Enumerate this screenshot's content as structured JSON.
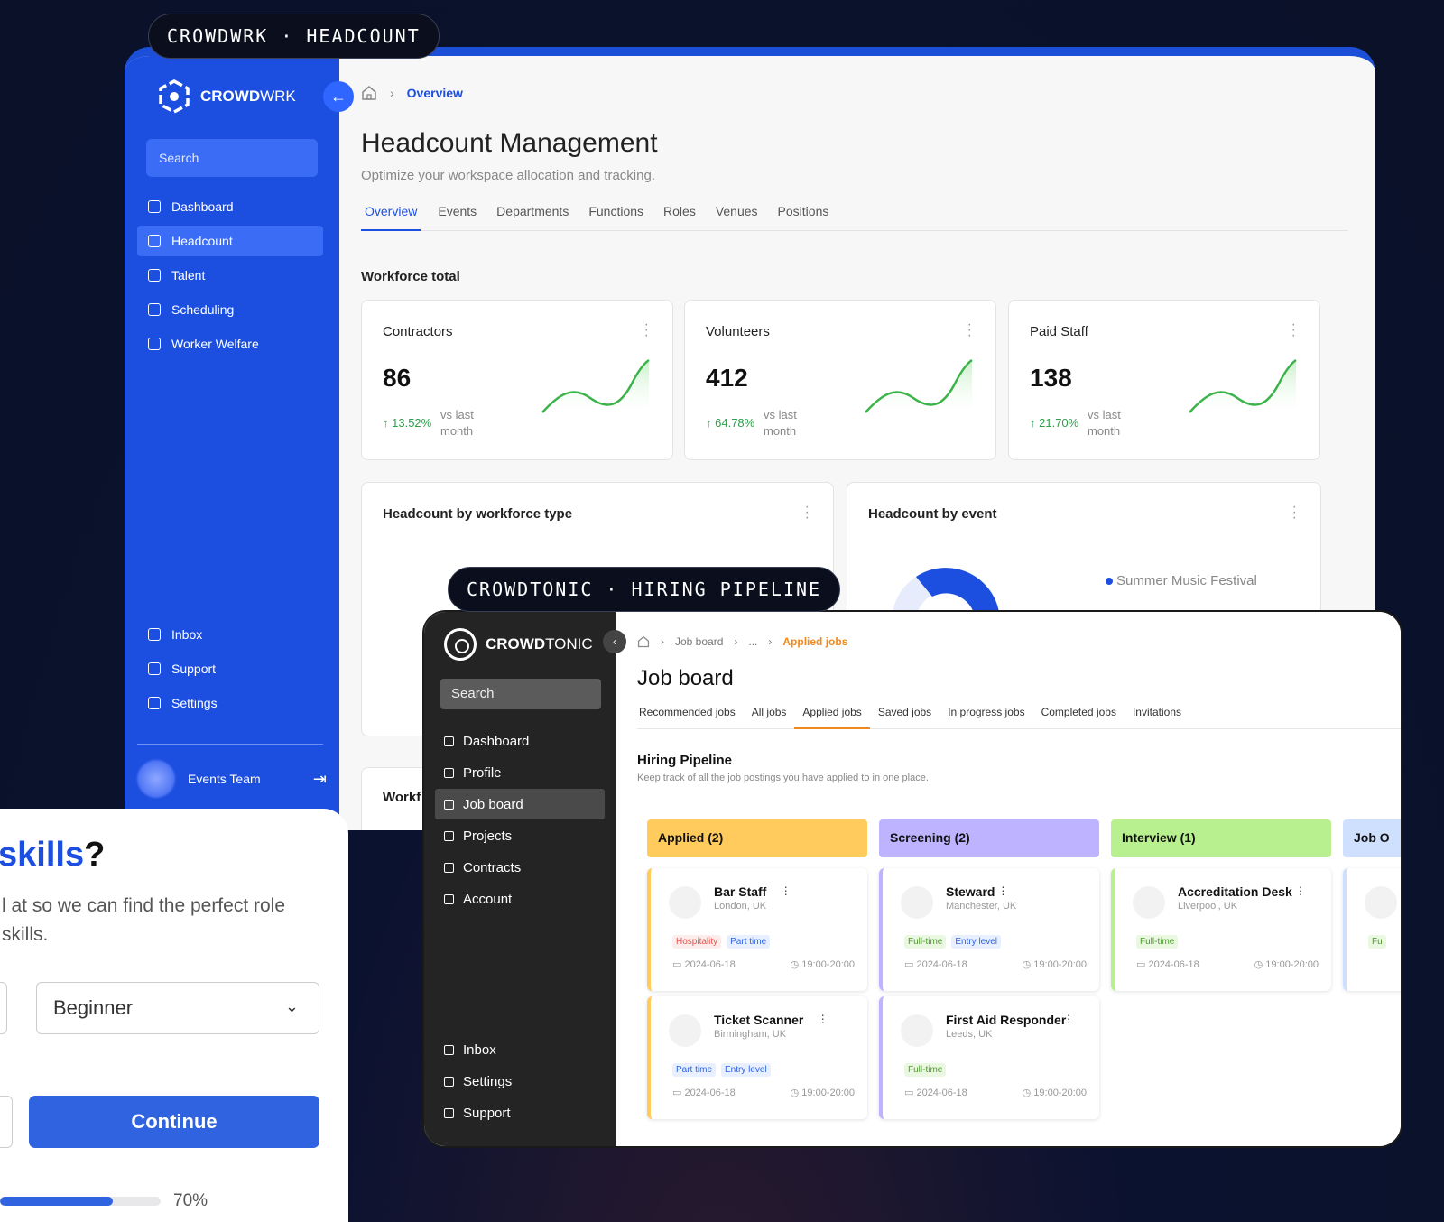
{
  "pill1": {
    "left": "CROWDWRK",
    "sep": "·",
    "right": "HEADCOUNT"
  },
  "pill2": {
    "left": "CROWDTONIC",
    "sep": "·",
    "right": "HIRING PIPELINE"
  },
  "crowdwrk": {
    "logo": {
      "bold": "CROWD",
      "light": "WRK"
    },
    "search_placeholder": "Search",
    "nav": [
      {
        "label": "Dashboard",
        "icon": "home-icon"
      },
      {
        "label": "Headcount",
        "icon": "clipboard-icon",
        "active": true
      },
      {
        "label": "Talent",
        "icon": "users-icon"
      },
      {
        "label": "Scheduling",
        "icon": "calendar-icon"
      },
      {
        "label": "Worker Welfare",
        "icon": "user-heart-icon"
      }
    ],
    "nav_bottom": [
      {
        "label": "Inbox",
        "icon": "chat-icon"
      },
      {
        "label": "Support",
        "icon": "headset-icon"
      },
      {
        "label": "Settings",
        "icon": "gear-icon"
      }
    ],
    "team": "Events Team",
    "breadcrumb": {
      "current": "Overview"
    },
    "title": "Headcount Management",
    "subtitle": "Optimize your workspace allocation and tracking.",
    "tabs": [
      "Overview",
      "Events",
      "Departments",
      "Functions",
      "Roles",
      "Venues",
      "Positions"
    ],
    "section": "Workforce total",
    "stats": [
      {
        "title": "Contractors",
        "value": "86",
        "change": "13.52%",
        "vs": "vs last month"
      },
      {
        "title": "Volunteers",
        "value": "412",
        "change": "64.78%",
        "vs": "vs last month"
      },
      {
        "title": "Paid Staff",
        "value": "138",
        "change": "21.70%",
        "vs": "vs last month"
      }
    ],
    "chart_cards": [
      {
        "title": "Headcount by workforce type"
      },
      {
        "title": "Headcount by event",
        "legend": [
          "Summer Music Festival"
        ]
      }
    ],
    "partial_card": "Workf"
  },
  "crowdtonic": {
    "logo": {
      "bold": "CROWD",
      "light": "TONIC"
    },
    "search_placeholder": "Search",
    "nav": [
      {
        "label": "Dashboard",
        "icon": "bar-chart-icon"
      },
      {
        "label": "Profile",
        "icon": "user-icon"
      },
      {
        "label": "Job board",
        "icon": "clipboard-icon",
        "active": true
      },
      {
        "label": "Projects",
        "icon": "projects-icon"
      },
      {
        "label": "Contracts",
        "icon": "document-icon"
      },
      {
        "label": "Account",
        "icon": "card-icon"
      }
    ],
    "nav_bottom": [
      {
        "label": "Inbox",
        "icon": "chat-icon"
      },
      {
        "label": "Settings",
        "icon": "gear-icon"
      },
      {
        "label": "Support",
        "icon": "headset-icon"
      }
    ],
    "breadcrumb": {
      "a": "Job board",
      "b": "...",
      "current": "Applied jobs"
    },
    "title": "Job board",
    "tabs": [
      "Recommended jobs",
      "All jobs",
      "Applied jobs",
      "Saved jobs",
      "In progress jobs",
      "Completed jobs",
      "Invitations"
    ],
    "section": "Hiring Pipeline",
    "section_sub": "Keep track of all the job postings you have applied to in one place.",
    "columns": [
      {
        "label": "Applied (2)",
        "color": "#ffcb5c",
        "border": "#ffcb5c"
      },
      {
        "label": "Screening (2)",
        "color": "#bdb3ff",
        "border": "#bdb3ff"
      },
      {
        "label": "Interview (1)",
        "color": "#b9f08f",
        "border": "#b9f08f"
      },
      {
        "label": "Job O",
        "color": "#cfe0ff",
        "border": "#cfe0ff"
      }
    ],
    "jobs": [
      {
        "title": "Bar Staff",
        "loc": "London, UK",
        "tags": [
          "Hospitality",
          "Part time"
        ],
        "date": "2024-06-18",
        "time": "19:00-20:00"
      },
      {
        "title": "Ticket Scanner",
        "loc": "Birmingham, UK",
        "tags": [
          "Part time",
          "Entry level"
        ],
        "date": "2024-06-18",
        "time": "19:00-20:00"
      },
      {
        "title": "Steward",
        "loc": "Manchester, UK",
        "tags": [
          "Full-time",
          "Entry level"
        ],
        "date": "2024-06-18",
        "time": "19:00-20:00"
      },
      {
        "title": "First Aid Responder",
        "loc": "Leeds, UK",
        "tags": [
          "Full-time"
        ],
        "date": "2024-06-18",
        "time": "19:00-20:00"
      },
      {
        "title": "Accreditation Desk",
        "loc": "Liverpool, UK",
        "tags": [
          "Full-time"
        ],
        "date": "2024-06-18",
        "time": "19:00-20:00"
      },
      {
        "title": "",
        "loc": "",
        "tags": [
          "Fu"
        ],
        "date": "",
        "time": ""
      }
    ]
  },
  "onboarding": {
    "question_highlight": "skills",
    "question_end": "?",
    "sub_line1": "l at so we can find the perfect role",
    "sub_line2": "skills.",
    "select_value": "Beginner",
    "continue_label": "Continue",
    "progress_text": "70%",
    "progress_fraction": 0.7
  }
}
